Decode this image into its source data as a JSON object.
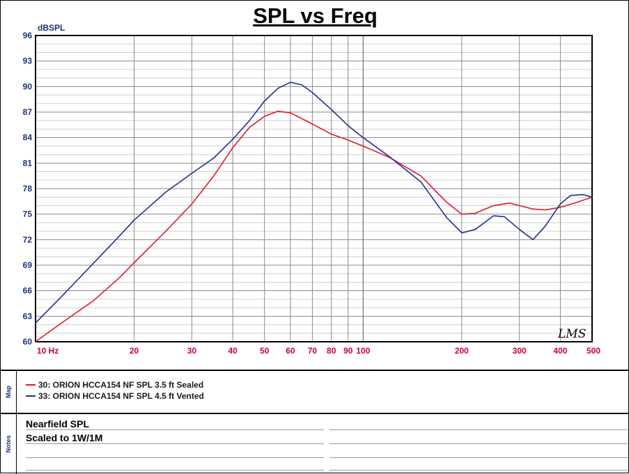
{
  "chart_data": {
    "type": "line",
    "title": "SPL vs Freq",
    "ylabel": "dBSPL",
    "xlabel": "",
    "xscale": "log",
    "xlim": [
      10,
      500
    ],
    "ylim": [
      60,
      96
    ],
    "yticks": [
      "60",
      "63",
      "66",
      "69",
      "72",
      "75",
      "78",
      "81",
      "84",
      "87",
      "90",
      "93",
      "96"
    ],
    "xticks": [
      {
        "value": 10,
        "label": "10 Hz"
      },
      {
        "value": 20,
        "label": "20"
      },
      {
        "value": 30,
        "label": "30"
      },
      {
        "value": 40,
        "label": "40"
      },
      {
        "value": 50,
        "label": "50"
      },
      {
        "value": 60,
        "label": "60"
      },
      {
        "value": 70,
        "label": "70"
      },
      {
        "value": 80,
        "label": "80"
      },
      {
        "value": 90,
        "label": "90"
      },
      {
        "value": 100,
        "label": "100"
      },
      {
        "value": 200,
        "label": "200"
      },
      {
        "value": 300,
        "label": "300"
      },
      {
        "value": 400,
        "label": "400"
      },
      {
        "value": 500,
        "label": "500"
      }
    ],
    "grid": true,
    "series": [
      {
        "name": "30: ORION HCCA154 NF SPL 3.5 ft Sealed",
        "color": "#dd1a2a",
        "points": [
          [
            10,
            60.0
          ],
          [
            12,
            62.2
          ],
          [
            15,
            64.8
          ],
          [
            18,
            67.5
          ],
          [
            20,
            69.3
          ],
          [
            25,
            73.0
          ],
          [
            30,
            76.2
          ],
          [
            35,
            79.5
          ],
          [
            40,
            82.8
          ],
          [
            45,
            85.2
          ],
          [
            50,
            86.5
          ],
          [
            55,
            87.1
          ],
          [
            60,
            86.9
          ],
          [
            70,
            85.6
          ],
          [
            80,
            84.4
          ],
          [
            90,
            83.7
          ],
          [
            100,
            83.0
          ],
          [
            120,
            81.7
          ],
          [
            150,
            79.5
          ],
          [
            180,
            76.4
          ],
          [
            200,
            75.0
          ],
          [
            220,
            75.1
          ],
          [
            250,
            76.0
          ],
          [
            280,
            76.3
          ],
          [
            300,
            76.0
          ],
          [
            330,
            75.6
          ],
          [
            360,
            75.5
          ],
          [
            400,
            75.8
          ],
          [
            450,
            76.4
          ],
          [
            500,
            77.0
          ]
        ]
      },
      {
        "name": "33: ORION HCCA154 NF SPL 4.5 ft Vented",
        "color": "#1f2f8f",
        "points": [
          [
            10,
            62.2
          ],
          [
            12,
            65.3
          ],
          [
            15,
            69.2
          ],
          [
            18,
            72.4
          ],
          [
            20,
            74.3
          ],
          [
            25,
            77.6
          ],
          [
            30,
            79.8
          ],
          [
            35,
            81.6
          ],
          [
            40,
            83.8
          ],
          [
            45,
            86.0
          ],
          [
            50,
            88.3
          ],
          [
            55,
            89.8
          ],
          [
            60,
            90.5
          ],
          [
            65,
            90.2
          ],
          [
            70,
            89.3
          ],
          [
            80,
            87.3
          ],
          [
            90,
            85.4
          ],
          [
            100,
            84.0
          ],
          [
            120,
            81.8
          ],
          [
            150,
            78.8
          ],
          [
            180,
            74.6
          ],
          [
            200,
            72.8
          ],
          [
            220,
            73.2
          ],
          [
            250,
            74.8
          ],
          [
            270,
            74.7
          ],
          [
            300,
            73.2
          ],
          [
            330,
            72.0
          ],
          [
            360,
            73.6
          ],
          [
            400,
            76.2
          ],
          [
            430,
            77.2
          ],
          [
            470,
            77.3
          ],
          [
            500,
            77.0
          ]
        ]
      }
    ]
  },
  "sections": {
    "map_label": "Map",
    "notes_label": "Notes"
  },
  "notes": {
    "line1": "Nearfield SPL",
    "line2": "Scaled to 1W/1M"
  },
  "watermark": "LMS"
}
